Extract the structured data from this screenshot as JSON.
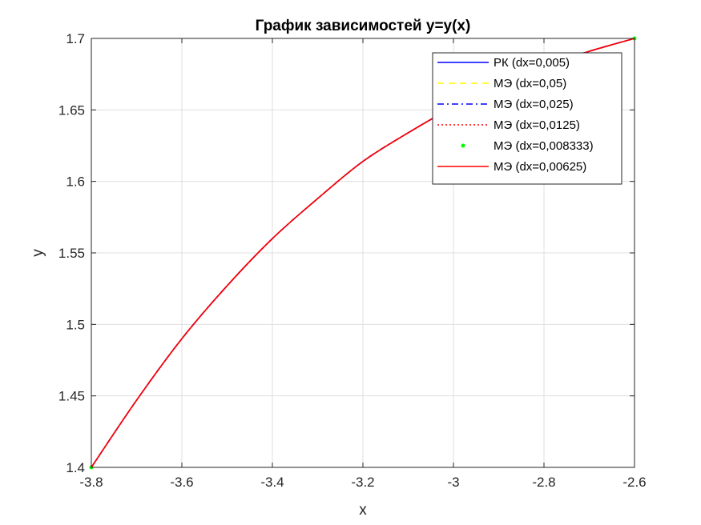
{
  "chart_data": {
    "type": "line",
    "title": "График зависимостей y=y(x)",
    "xlabel": "x",
    "ylabel": "y",
    "xlim": [
      -3.8,
      -2.6
    ],
    "ylim": [
      1.4,
      1.7
    ],
    "x_ticks": [
      -3.8,
      -3.6,
      -3.4,
      -3.2,
      -3,
      -2.8,
      -2.6
    ],
    "x_tick_labels": [
      "-3.8",
      "-3.6",
      "-3.4",
      "-3.2",
      "-3",
      "-2.8",
      "-2.6"
    ],
    "y_ticks": [
      1.4,
      1.45,
      1.5,
      1.55,
      1.6,
      1.65,
      1.7
    ],
    "y_tick_labels": [
      "1.4",
      "1.45",
      "1.5",
      "1.55",
      "1.6",
      "1.65",
      "1.7"
    ],
    "grid": true,
    "legend_position": "top-right",
    "x": [
      -3.8,
      -3.7,
      -3.6,
      -3.5,
      -3.4,
      -3.3,
      -3.2,
      -3.1,
      -3.0,
      -2.9,
      -2.8,
      -2.7,
      -2.6
    ],
    "series": [
      {
        "name": "РК (dx=0,005)",
        "color": "#0000ff",
        "style": "solid",
        "values": [
          1.4,
          1.447,
          1.49,
          1.527,
          1.56,
          1.588,
          1.614,
          1.634,
          1.652,
          1.667,
          1.681,
          1.691,
          1.7
        ]
      },
      {
        "name": "МЭ (dx=0,05)",
        "color": "#ffff00",
        "style": "dashed",
        "values": [
          1.4,
          1.447,
          1.49,
          1.527,
          1.56,
          1.588,
          1.614,
          1.634,
          1.652,
          1.667,
          1.681,
          1.691,
          1.7
        ]
      },
      {
        "name": "МЭ (dx=0,025)",
        "color": "#0000ff",
        "style": "dashdot",
        "values": [
          1.4,
          1.447,
          1.49,
          1.527,
          1.56,
          1.588,
          1.614,
          1.634,
          1.652,
          1.667,
          1.681,
          1.691,
          1.7
        ]
      },
      {
        "name": "МЭ (dx=0,0125)",
        "color": "#ff0000",
        "style": "dotted",
        "values": [
          1.4,
          1.447,
          1.49,
          1.527,
          1.56,
          1.588,
          1.614,
          1.634,
          1.652,
          1.667,
          1.681,
          1.691,
          1.7
        ]
      },
      {
        "name": "МЭ (dx=0,008333)",
        "color": "#00ff00",
        "style": "marker",
        "values": [
          1.4,
          1.447,
          1.49,
          1.527,
          1.56,
          1.588,
          1.614,
          1.634,
          1.652,
          1.667,
          1.681,
          1.691,
          1.7
        ]
      },
      {
        "name": "МЭ (dx=0,00625)",
        "color": "#ff0000",
        "style": "solid",
        "values": [
          1.4,
          1.447,
          1.49,
          1.527,
          1.56,
          1.588,
          1.614,
          1.634,
          1.652,
          1.667,
          1.681,
          1.691,
          1.7
        ]
      }
    ]
  }
}
